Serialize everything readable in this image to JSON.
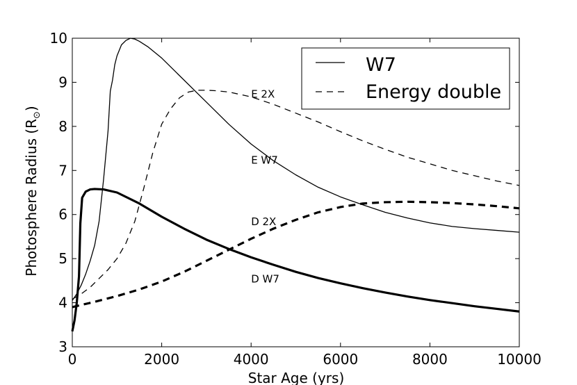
{
  "chart_data": {
    "type": "line",
    "title": "",
    "xlabel": "Star Age (yrs)",
    "ylabel_main": "Photosphere Radius (R",
    "ylabel_sub": "⊙",
    "ylabel_close": ")",
    "xlim": [
      0,
      10000
    ],
    "ylim": [
      3,
      10
    ],
    "xticks": [
      0,
      2000,
      4000,
      6000,
      8000,
      10000
    ],
    "yticks": [
      3,
      4,
      5,
      6,
      7,
      8,
      9,
      10
    ],
    "grid": false,
    "legend": {
      "placement": "top-right",
      "entries": [
        {
          "label": "W7",
          "style": "solid"
        },
        {
          "label": "Energy double",
          "style": "dashed"
        }
      ]
    },
    "annotations": [
      {
        "text": "E 2X",
        "x": 4000,
        "y": 8.75
      },
      {
        "text": "E W7",
        "x": 4000,
        "y": 7.25
      },
      {
        "text": "D 2X",
        "x": 4000,
        "y": 5.85
      },
      {
        "text": "D W7",
        "x": 4000,
        "y": 4.55
      }
    ],
    "series": [
      {
        "name": "E W7",
        "style": "solid",
        "weight": "thin",
        "x": [
          0,
          100,
          200,
          300,
          400,
          500,
          600,
          700,
          800,
          850,
          900,
          950,
          1000,
          1100,
          1200,
          1300,
          1400,
          1500,
          1700,
          2000,
          2500,
          3000,
          3500,
          4000,
          4500,
          5000,
          5500,
          6000,
          6500,
          7000,
          7500,
          8000,
          8500,
          9000,
          9500,
          10000
        ],
        "y": [
          4.05,
          4.2,
          4.4,
          4.65,
          4.95,
          5.3,
          5.85,
          6.8,
          7.9,
          8.8,
          9.05,
          9.4,
          9.6,
          9.85,
          9.95,
          10.0,
          9.98,
          9.93,
          9.8,
          9.55,
          9.05,
          8.55,
          8.05,
          7.6,
          7.22,
          6.9,
          6.62,
          6.4,
          6.22,
          6.05,
          5.92,
          5.81,
          5.73,
          5.68,
          5.64,
          5.6
        ]
      },
      {
        "name": "E 2X",
        "style": "dashed",
        "weight": "thin",
        "x": [
          0,
          200,
          400,
          600,
          800,
          1000,
          1200,
          1400,
          1600,
          1800,
          2000,
          2200,
          2400,
          2600,
          2800,
          3000,
          3200,
          3500,
          4000,
          4500,
          5000,
          5500,
          6000,
          6500,
          7000,
          7500,
          8000,
          8500,
          9000,
          9500,
          10000
        ],
        "y": [
          4.08,
          4.2,
          4.35,
          4.55,
          4.75,
          5.0,
          5.35,
          5.85,
          6.6,
          7.4,
          8.05,
          8.4,
          8.65,
          8.78,
          8.82,
          8.82,
          8.81,
          8.78,
          8.67,
          8.5,
          8.3,
          8.1,
          7.88,
          7.67,
          7.48,
          7.3,
          7.15,
          7.0,
          6.88,
          6.76,
          6.66
        ]
      },
      {
        "name": "D W7",
        "style": "solid",
        "weight": "thick",
        "x": [
          0,
          50,
          100,
          150,
          180,
          220,
          300,
          400,
          500,
          700,
          1000,
          1500,
          2000,
          2500,
          3000,
          3500,
          4000,
          4500,
          5000,
          5500,
          6000,
          6500,
          7000,
          7500,
          8000,
          8500,
          9000,
          9500,
          10000
        ],
        "y": [
          3.35,
          3.6,
          4.0,
          4.6,
          5.8,
          6.38,
          6.52,
          6.57,
          6.58,
          6.57,
          6.5,
          6.25,
          5.95,
          5.68,
          5.43,
          5.22,
          5.03,
          4.86,
          4.7,
          4.56,
          4.44,
          4.33,
          4.23,
          4.14,
          4.06,
          3.99,
          3.92,
          3.86,
          3.8
        ]
      },
      {
        "name": "D 2X",
        "style": "dashed",
        "weight": "thick",
        "x": [
          0,
          500,
          1000,
          1500,
          2000,
          2500,
          3000,
          3500,
          4000,
          4500,
          5000,
          5500,
          6000,
          6500,
          7000,
          7500,
          8000,
          8500,
          9000,
          9500,
          10000
        ],
        "y": [
          3.9,
          4.02,
          4.15,
          4.3,
          4.48,
          4.7,
          4.95,
          5.2,
          5.45,
          5.68,
          5.88,
          6.05,
          6.17,
          6.25,
          6.28,
          6.29,
          6.28,
          6.26,
          6.23,
          6.19,
          6.14
        ]
      }
    ]
  }
}
